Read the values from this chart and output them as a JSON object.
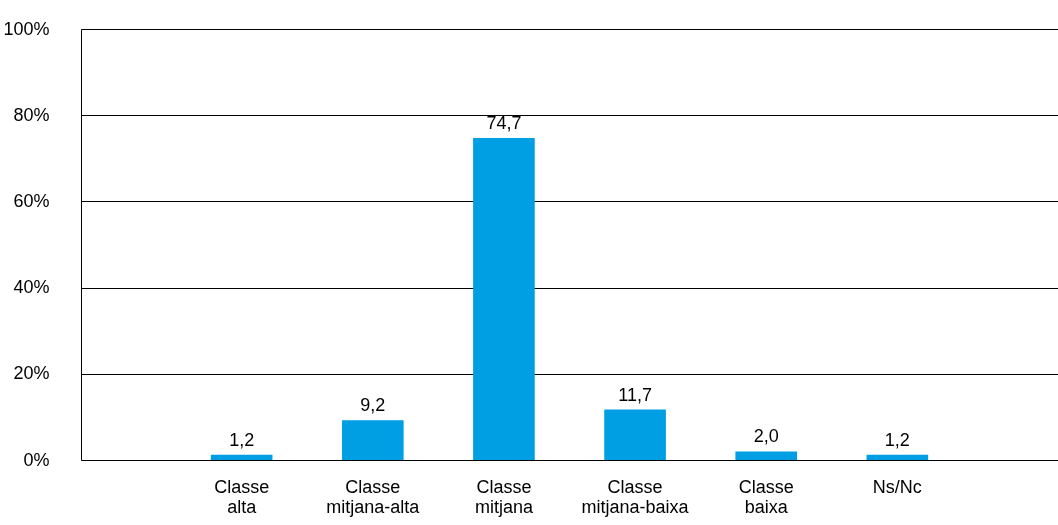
{
  "chart_data": {
    "type": "bar",
    "categories": [
      "Classe alta",
      "Classe mitjana-alta",
      "Classe mitjana",
      "Classe mitjana-baixa",
      "Classe baixa",
      "Ns/Nc"
    ],
    "values": [
      1.2,
      9.2,
      74.7,
      11.7,
      2.0,
      1.2
    ],
    "value_labels": [
      "1,2",
      "9,2",
      "74,7",
      "11,7",
      "2,0",
      "1,2"
    ],
    "color": "#009fe3",
    "ylim": [
      0,
      100
    ],
    "yticks": [
      {
        "value": 0,
        "label": "0%"
      },
      {
        "value": 20,
        "label": "20%"
      },
      {
        "value": 40,
        "label": "40%"
      },
      {
        "value": 60,
        "label": "60%"
      },
      {
        "value": 80,
        "label": "80%"
      },
      {
        "value": 100,
        "label": "100%"
      }
    ],
    "grid": "y"
  }
}
